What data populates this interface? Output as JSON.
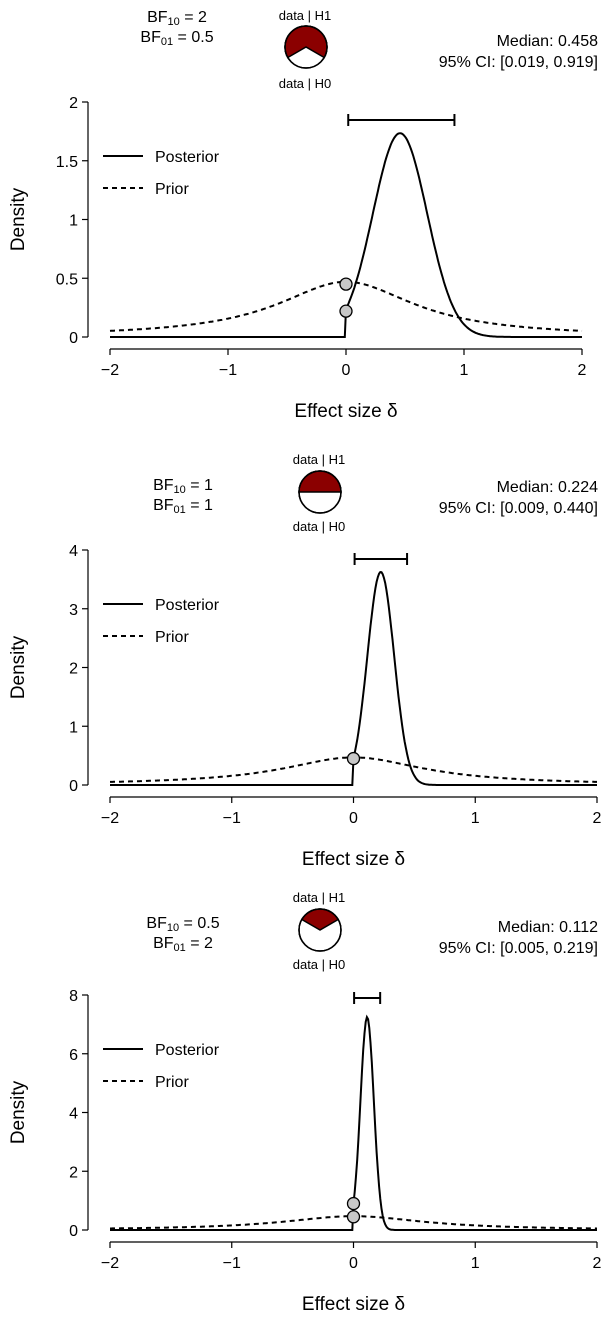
{
  "chart_data": [
    {
      "type": "line",
      "bf10_label": "BF",
      "bf10_sub": "10",
      "bf10_value": "2",
      "bf01_label": "BF",
      "bf01_sub": "01",
      "bf01_value": "0.5",
      "pie_top_label": "data | H1",
      "pie_bottom_label": "data | H0",
      "pie_h1_fraction": 0.667,
      "median_text": "Median: 0.458",
      "ci_text": "95% CI: [0.019, 0.919]",
      "ci": [
        0.019,
        0.919
      ],
      "xlabel": "Effect size δ",
      "ylabel": "Density",
      "xlim": [
        -2,
        2
      ],
      "ylim": [
        0,
        2
      ],
      "xticks": [
        "−2",
        "−1",
        "0",
        "1",
        "2"
      ],
      "xtick_values": [
        -2,
        -1,
        0,
        1,
        2
      ],
      "yticks": [
        "0",
        "0.5",
        "1",
        "1.5",
        "2"
      ],
      "ytick_values": [
        0,
        0.5,
        1,
        1.5,
        2
      ],
      "legend": [
        "Posterior",
        "Prior"
      ],
      "posterior": {
        "mean": 0.458,
        "sd": 0.23
      },
      "prior_peak": 0.47,
      "points": [
        {
          "x": 0,
          "y": 0.45
        },
        {
          "x": 0,
          "y": 0.22
        }
      ],
      "colors": {
        "pie": "#8b0000",
        "point": "#c8c8c8",
        "line": "#000000"
      }
    },
    {
      "type": "line",
      "bf10_label": "BF",
      "bf10_sub": "10",
      "bf10_value": "1",
      "bf01_label": "BF",
      "bf01_sub": "01",
      "bf01_value": "1",
      "pie_top_label": "data | H1",
      "pie_bottom_label": "data | H0",
      "pie_h1_fraction": 0.5,
      "median_text": "Median: 0.224",
      "ci_text": "95% CI: [0.009, 0.440]",
      "ci": [
        0.009,
        0.44
      ],
      "xlabel": "Effect size δ",
      "ylabel": "Density",
      "xlim": [
        -2,
        2
      ],
      "ylim": [
        0,
        4
      ],
      "xticks": [
        "−2",
        "−1",
        "0",
        "1",
        "2"
      ],
      "xtick_values": [
        -2,
        -1,
        0,
        1,
        2
      ],
      "yticks": [
        "0",
        "1",
        "2",
        "3",
        "4"
      ],
      "ytick_values": [
        0,
        1,
        2,
        3,
        4
      ],
      "legend": [
        "Posterior",
        "Prior"
      ],
      "posterior": {
        "mean": 0.224,
        "sd": 0.11
      },
      "prior_peak": 0.47,
      "points": [
        {
          "x": 0,
          "y": 0.45
        }
      ],
      "colors": {
        "pie": "#8b0000",
        "point": "#c8c8c8",
        "line": "#000000"
      }
    },
    {
      "type": "line",
      "bf10_label": "BF",
      "bf10_sub": "10",
      "bf10_value": "0.5",
      "bf01_label": "BF",
      "bf01_sub": "01",
      "bf01_value": "2",
      "pie_top_label": "data | H1",
      "pie_bottom_label": "data | H0",
      "pie_h1_fraction": 0.333,
      "median_text": "Median: 0.112",
      "ci_text": "95% CI: [0.005, 0.219]",
      "ci": [
        0.005,
        0.219
      ],
      "xlabel": "Effect size δ",
      "ylabel": "Density",
      "xlim": [
        -2,
        2
      ],
      "ylim": [
        0,
        8
      ],
      "xticks": [
        "−2",
        "−1",
        "0",
        "1",
        "2"
      ],
      "xtick_values": [
        -2,
        -1,
        0,
        1,
        2
      ],
      "yticks": [
        "0",
        "2",
        "4",
        "6",
        "8"
      ],
      "ytick_values": [
        0,
        2,
        4,
        6,
        8
      ],
      "legend": [
        "Posterior",
        "Prior"
      ],
      "posterior": {
        "mean": 0.112,
        "sd": 0.055
      },
      "prior_peak": 0.47,
      "points": [
        {
          "x": 0,
          "y": 0.9
        },
        {
          "x": 0,
          "y": 0.45
        }
      ],
      "colors": {
        "pie": "#8b0000",
        "point": "#c8c8c8",
        "line": "#000000"
      }
    }
  ]
}
